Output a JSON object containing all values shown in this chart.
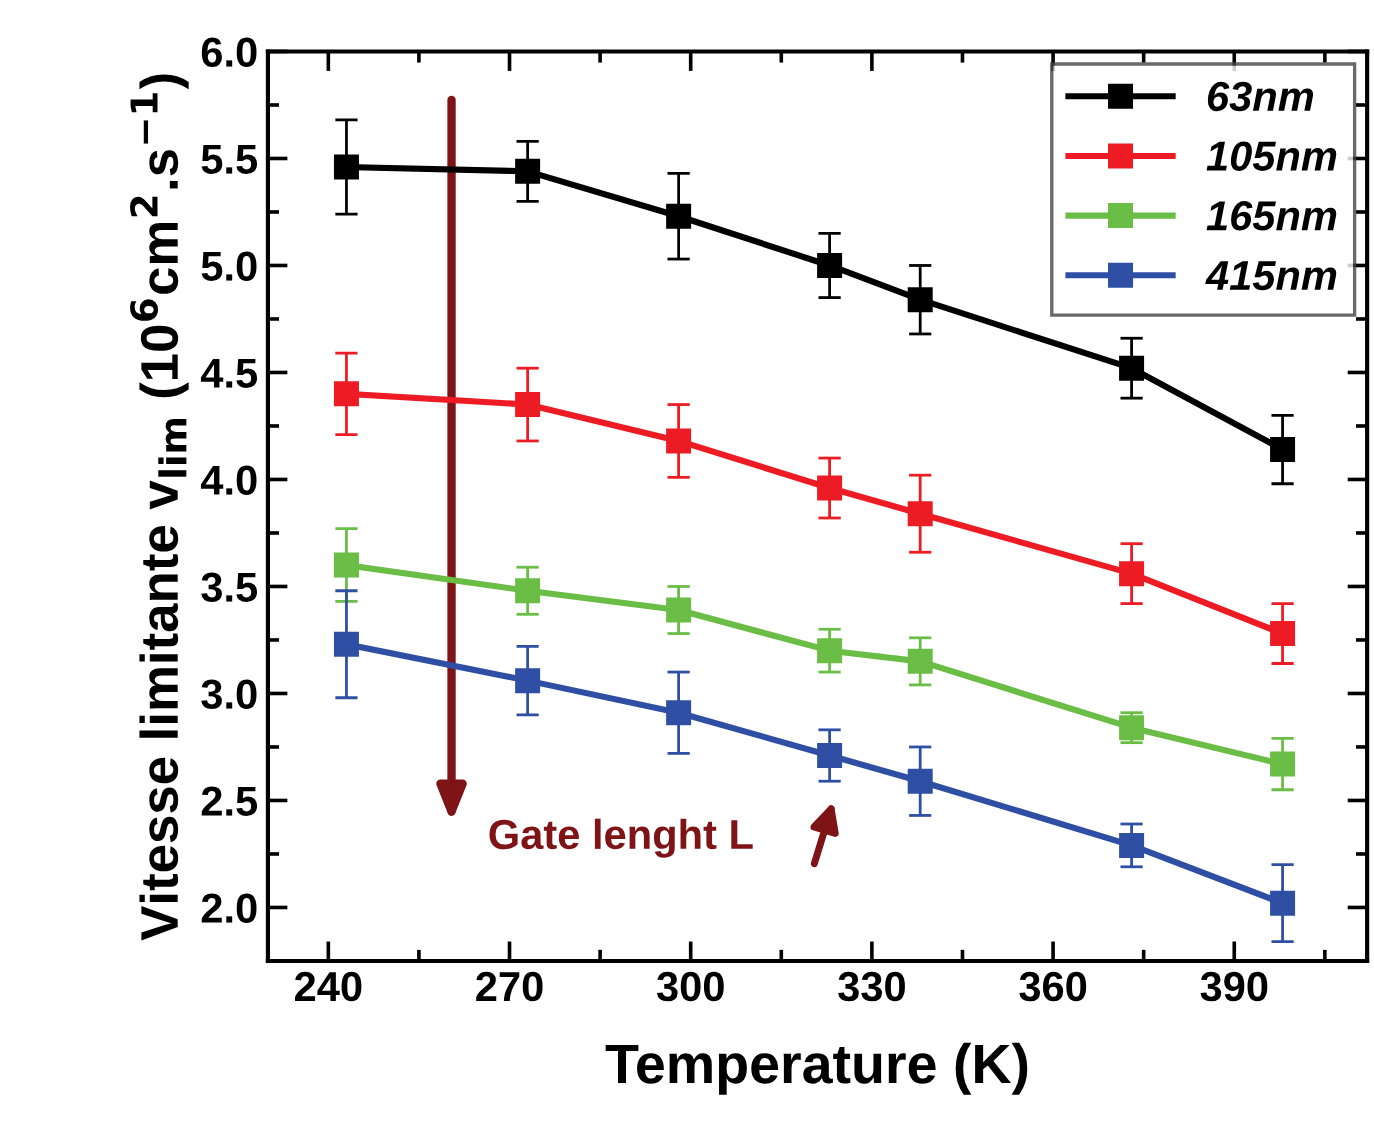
{
  "chart_data": {
    "type": "line",
    "xlabel": "Temperature (K)",
    "ylabel": "Vitesse limitante v$_{lim}$ (10$^{6}$cm$^{2}$.s$^{−1}$)",
    "x": [
      243,
      273,
      298,
      323,
      338,
      373,
      398
    ],
    "series": [
      {
        "name": "63nm",
        "color": "#000000",
        "values": [
          5.46,
          5.44,
          5.23,
          5.0,
          4.84,
          4.52,
          4.14
        ],
        "errors": [
          0.22,
          0.14,
          0.2,
          0.15,
          0.16,
          0.14,
          0.16
        ]
      },
      {
        "name": "105nm",
        "color": "#ed1c24",
        "values": [
          4.4,
          4.35,
          4.18,
          3.96,
          3.84,
          3.56,
          3.28
        ],
        "errors": [
          0.19,
          0.17,
          0.17,
          0.14,
          0.18,
          0.14,
          0.14
        ]
      },
      {
        "name": "165nm",
        "color": "#6abd45",
        "values": [
          3.6,
          3.48,
          3.39,
          3.2,
          3.15,
          2.84,
          2.67
        ],
        "errors": [
          0.17,
          0.11,
          0.11,
          0.1,
          0.11,
          0.07,
          0.12
        ]
      },
      {
        "name": "415nm",
        "color": "#2e4fa3",
        "values": [
          3.23,
          3.06,
          2.91,
          2.71,
          2.59,
          2.29,
          2.02
        ],
        "errors": [
          0.25,
          0.16,
          0.19,
          0.12,
          0.16,
          0.1,
          0.18
        ]
      }
    ],
    "xlim": [
      230,
      412
    ],
    "xticks": [
      240,
      270,
      300,
      330,
      360,
      390
    ],
    "ylim": [
      1.75,
      6.0
    ],
    "yticks": [
      {
        "value": 2,
        "label": "2.0"
      },
      2.5,
      {
        "value": 3,
        "label": "3.0"
      },
      3.5,
      {
        "value": 4,
        "label": "4.0"
      },
      4.5,
      {
        "value": 5,
        "label": "5.0"
      },
      5.5,
      {
        "value": 6,
        "label": "6.0"
      }
    ],
    "annotations": [
      "Gate lenght L"
    ],
    "marker": "square",
    "line_style": "solid",
    "grid": false,
    "legend": "top right"
  }
}
